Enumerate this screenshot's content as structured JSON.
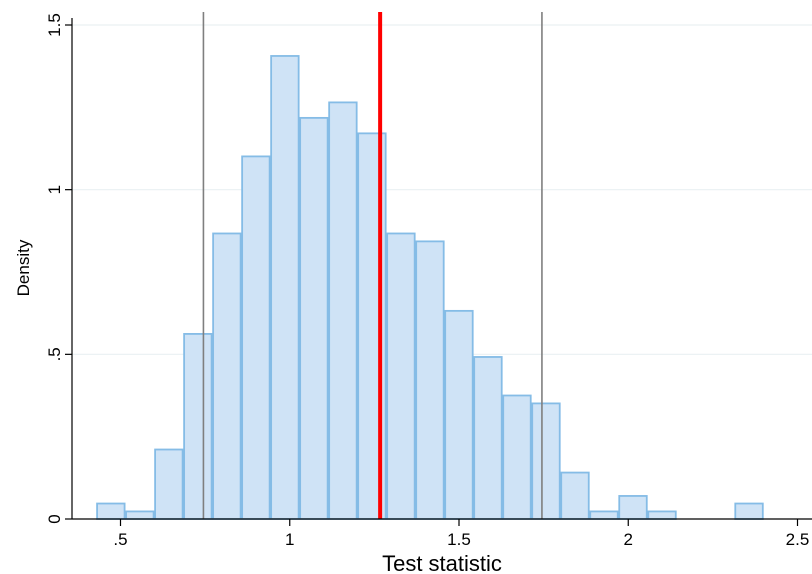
{
  "chart_data": {
    "type": "histogram",
    "title": "",
    "xlabel": "Test statistic",
    "ylabel": "Density",
    "xlim": [
      0.35,
      2.55
    ],
    "ylim": [
      0,
      1.5
    ],
    "x_ticks": [
      0.5,
      1,
      1.5,
      2,
      2.5
    ],
    "x_tick_labels": [
      ".5",
      "1",
      "1.5",
      "2",
      "2.5"
    ],
    "y_ticks": [
      0,
      0.5,
      1,
      1.5
    ],
    "y_tick_labels": [
      "0",
      ".5",
      "1",
      "1.5"
    ],
    "grid": "horizontal",
    "bin_width": 0.0857,
    "bin_start": 0.4286,
    "values": [
      0.047,
      0.023,
      0.211,
      0.562,
      0.867,
      1.101,
      1.406,
      1.218,
      1.265,
      1.171,
      0.867,
      0.843,
      0.632,
      0.492,
      0.375,
      0.351,
      0.141,
      0.023,
      0.07,
      0.023,
      0,
      0,
      0.047
    ],
    "reference_lines": [
      {
        "x": 1.267,
        "color": "#ff0000",
        "role": "observed statistic"
      },
      {
        "x": 0.745,
        "color": "#7f7f7f",
        "role": "lower bound"
      },
      {
        "x": 1.745,
        "color": "#7f7f7f",
        "role": "upper bound"
      }
    ],
    "bar_fill": "#cfe3f6",
    "bar_stroke": "#85bce6"
  }
}
